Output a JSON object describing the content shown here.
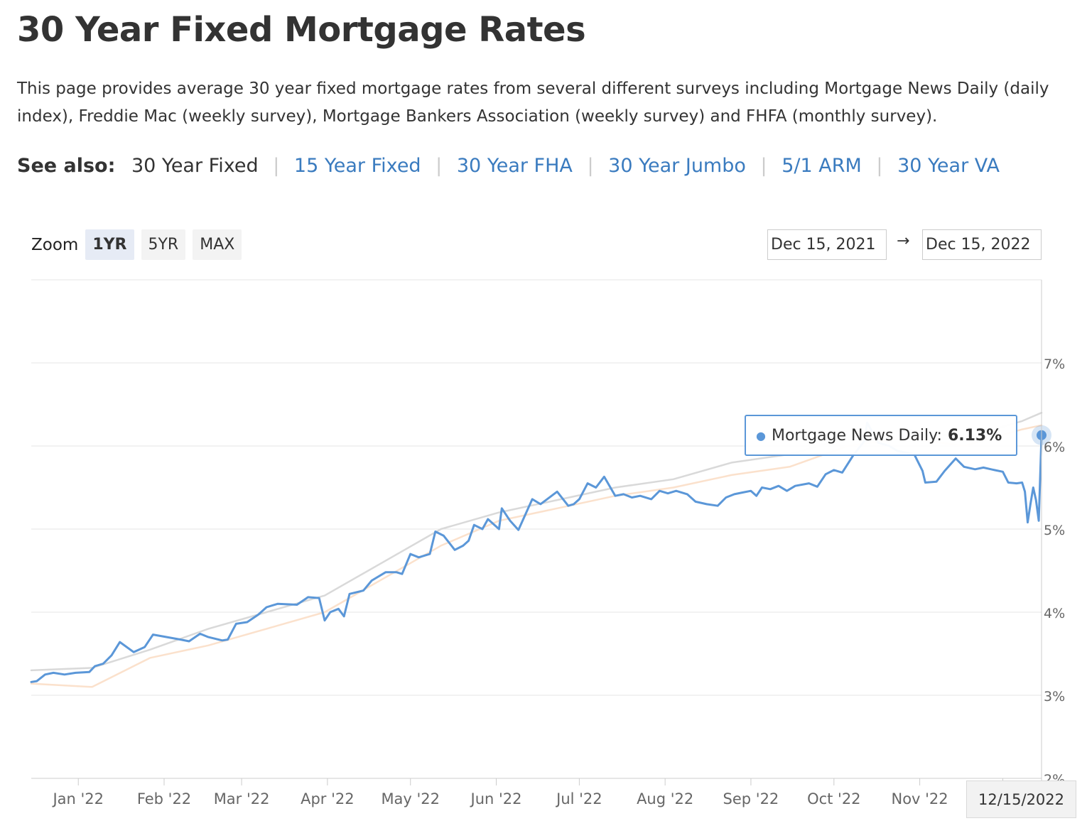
{
  "page": {
    "title": "30 Year Fixed Mortgage Rates",
    "intro": "This page provides average 30 year fixed mortgage rates from several different surveys including Mortgage News Daily (daily index), Freddie Mac (weekly survey), Mortgage Bankers Association (weekly survey) and FHFA (monthly survey)."
  },
  "see_also": {
    "label": "See also:",
    "current": "30 Year Fixed",
    "links": [
      "15 Year Fixed",
      "30 Year FHA",
      "30 Year Jumbo",
      "5/1 ARM",
      "30 Year VA"
    ],
    "separator": "|"
  },
  "zoom": {
    "label": "Zoom",
    "options": [
      "1YR",
      "5YR",
      "MAX"
    ],
    "active": "1YR"
  },
  "range": {
    "from": "Dec 15, 2021",
    "arrow": "→",
    "to": "Dec 15, 2022"
  },
  "tooltip": {
    "series": "Mortgage News Daily:",
    "value": "6.13%"
  },
  "hover_date": "12/15/2022",
  "colors": {
    "mnd": "#5b97d8",
    "other_survey_gray": "#d9d9d9",
    "other_survey_peach": "#fbe1cc",
    "link": "#3a7bbf"
  },
  "chart_data": {
    "type": "line",
    "x_range": [
      "2021-12-15",
      "2022-12-15"
    ],
    "ylim": [
      2,
      8
    ],
    "y_ticks": [
      "2%",
      "3%",
      "4%",
      "5%",
      "6%",
      "7%"
    ],
    "x_ticks": [
      {
        "date": "2022-01-01",
        "label": "Jan '22"
      },
      {
        "date": "2022-02-01",
        "label": "Feb '22"
      },
      {
        "date": "2022-03-01",
        "label": "Mar '22"
      },
      {
        "date": "2022-04-01",
        "label": "Apr '22"
      },
      {
        "date": "2022-05-01",
        "label": "May '22"
      },
      {
        "date": "2022-06-01",
        "label": "Jun '22"
      },
      {
        "date": "2022-07-01",
        "label": "Jul '22"
      },
      {
        "date": "2022-08-01",
        "label": "Aug '22"
      },
      {
        "date": "2022-09-01",
        "label": "Sep '22"
      },
      {
        "date": "2022-10-01",
        "label": "Oct '22"
      },
      {
        "date": "2022-11-01",
        "label": "Nov '22"
      },
      {
        "date": "2022-12-01",
        "label": "Dec '22"
      }
    ],
    "series": [
      {
        "name": "Mortgage News Daily",
        "color": "#5b97d8",
        "points": [
          [
            "2021-12-15",
            3.16
          ],
          [
            "2021-12-17",
            3.17
          ],
          [
            "2021-12-20",
            3.25
          ],
          [
            "2021-12-23",
            3.27
          ],
          [
            "2021-12-27",
            3.25
          ],
          [
            "2021-12-31",
            3.27
          ],
          [
            "2022-01-05",
            3.28
          ],
          [
            "2022-01-07",
            3.35
          ],
          [
            "2022-01-10",
            3.38
          ],
          [
            "2022-01-13",
            3.48
          ],
          [
            "2022-01-16",
            3.64
          ],
          [
            "2022-01-21",
            3.52
          ],
          [
            "2022-01-25",
            3.58
          ],
          [
            "2022-01-28",
            3.73
          ],
          [
            "2022-02-02",
            3.7
          ],
          [
            "2022-02-07",
            3.67
          ],
          [
            "2022-02-10",
            3.65
          ],
          [
            "2022-02-14",
            3.74
          ],
          [
            "2022-02-17",
            3.7
          ],
          [
            "2022-02-22",
            3.66
          ],
          [
            "2022-02-24",
            3.67
          ],
          [
            "2022-02-27",
            3.86
          ],
          [
            "2022-03-03",
            3.88
          ],
          [
            "2022-03-07",
            3.97
          ],
          [
            "2022-03-10",
            4.06
          ],
          [
            "2022-03-14",
            4.1
          ],
          [
            "2022-03-21",
            4.09
          ],
          [
            "2022-03-25",
            4.18
          ],
          [
            "2022-03-29",
            4.17
          ],
          [
            "2022-03-31",
            3.9
          ],
          [
            "2022-04-02",
            4.0
          ],
          [
            "2022-04-05",
            4.04
          ],
          [
            "2022-04-07",
            3.95
          ],
          [
            "2022-04-09",
            4.22
          ],
          [
            "2022-04-14",
            4.26
          ],
          [
            "2022-04-17",
            4.38
          ],
          [
            "2022-04-22",
            4.48
          ],
          [
            "2022-04-26",
            4.48
          ],
          [
            "2022-04-28",
            4.46
          ],
          [
            "2022-05-01",
            4.7
          ],
          [
            "2022-05-04",
            4.66
          ],
          [
            "2022-05-08",
            4.7
          ],
          [
            "2022-05-10",
            4.97
          ],
          [
            "2022-05-13",
            4.92
          ],
          [
            "2022-05-17",
            4.75
          ],
          [
            "2022-05-20",
            4.8
          ],
          [
            "2022-05-22",
            4.86
          ],
          [
            "2022-05-24",
            5.05
          ],
          [
            "2022-05-27",
            5.0
          ],
          [
            "2022-05-29",
            5.12
          ],
          [
            "2022-06-02",
            5.0
          ],
          [
            "2022-06-03",
            5.25
          ],
          [
            "2022-06-06",
            5.1
          ],
          [
            "2022-06-09",
            4.99
          ],
          [
            "2022-06-14",
            5.36
          ],
          [
            "2022-06-17",
            5.3
          ],
          [
            "2022-06-19",
            5.35
          ],
          [
            "2022-06-23",
            5.45
          ],
          [
            "2022-06-27",
            5.28
          ],
          [
            "2022-06-29",
            5.3
          ],
          [
            "2022-07-01",
            5.36
          ],
          [
            "2022-07-04",
            5.55
          ],
          [
            "2022-07-07",
            5.5
          ],
          [
            "2022-07-10",
            5.63
          ],
          [
            "2022-07-14",
            5.4
          ],
          [
            "2022-07-17",
            5.42
          ],
          [
            "2022-07-20",
            5.38
          ],
          [
            "2022-07-23",
            5.4
          ],
          [
            "2022-07-27",
            5.36
          ],
          [
            "2022-07-30",
            5.46
          ],
          [
            "2022-08-02",
            5.43
          ],
          [
            "2022-08-05",
            5.46
          ],
          [
            "2022-08-09",
            5.42
          ],
          [
            "2022-08-12",
            5.33
          ],
          [
            "2022-08-16",
            5.3
          ],
          [
            "2022-08-20",
            5.28
          ],
          [
            "2022-08-23",
            5.38
          ],
          [
            "2022-08-26",
            5.42
          ],
          [
            "2022-08-29",
            5.44
          ],
          [
            "2022-09-01",
            5.46
          ],
          [
            "2022-09-03",
            5.4
          ],
          [
            "2022-09-05",
            5.5
          ],
          [
            "2022-09-08",
            5.48
          ],
          [
            "2022-09-11",
            5.52
          ],
          [
            "2022-09-14",
            5.46
          ],
          [
            "2022-09-17",
            5.52
          ],
          [
            "2022-09-22",
            5.55
          ],
          [
            "2022-09-25",
            5.51
          ],
          [
            "2022-09-28",
            5.66
          ],
          [
            "2022-10-01",
            5.71
          ],
          [
            "2022-10-04",
            5.68
          ],
          [
            "2022-10-08",
            5.89
          ],
          [
            "2022-10-12",
            6.06
          ],
          [
            "2022-10-13",
            6.28
          ],
          [
            "2022-10-17",
            6.04
          ],
          [
            "2022-10-21",
            6.0
          ],
          [
            "2022-10-24",
            5.94
          ],
          [
            "2022-10-27",
            5.92
          ],
          [
            "2022-10-30",
            5.9
          ],
          [
            "2022-11-02",
            5.7
          ],
          [
            "2022-11-03",
            5.56
          ],
          [
            "2022-11-07",
            5.57
          ],
          [
            "2022-11-10",
            5.7
          ],
          [
            "2022-11-14",
            5.85
          ],
          [
            "2022-11-17",
            5.75
          ],
          [
            "2022-11-21",
            5.72
          ],
          [
            "2022-11-24",
            5.74
          ],
          [
            "2022-11-28",
            5.71
          ],
          [
            "2022-12-01",
            5.69
          ],
          [
            "2022-12-03",
            5.56
          ],
          [
            "2022-12-06",
            5.55
          ],
          [
            "2022-12-08",
            5.56
          ],
          [
            "2022-12-09",
            5.45
          ],
          [
            "2022-12-10",
            5.08
          ],
          [
            "2022-12-11",
            5.3
          ],
          [
            "2022-12-12",
            5.5
          ],
          [
            "2022-12-13",
            5.35
          ],
          [
            "2022-12-14",
            5.1
          ],
          [
            "2022-12-15",
            6.13
          ]
        ]
      },
      {
        "name": "Freddie Mac",
        "color": "#d9d9d9",
        "points": [
          [
            "2021-12-15",
            3.3
          ],
          [
            "2022-01-06",
            3.33
          ],
          [
            "2022-01-27",
            3.55
          ],
          [
            "2022-02-17",
            3.8
          ],
          [
            "2022-03-10",
            4.0
          ],
          [
            "2022-03-31",
            4.2
          ],
          [
            "2022-04-21",
            4.6
          ],
          [
            "2022-05-12",
            5.0
          ],
          [
            "2022-06-02",
            5.2
          ],
          [
            "2022-06-23",
            5.35
          ],
          [
            "2022-07-14",
            5.5
          ],
          [
            "2022-08-04",
            5.6
          ],
          [
            "2022-08-25",
            5.8
          ],
          [
            "2022-09-15",
            5.9
          ],
          [
            "2022-10-06",
            6.1
          ],
          [
            "2022-10-27",
            6.2
          ],
          [
            "2022-11-17",
            6.1
          ],
          [
            "2022-12-08",
            6.3
          ],
          [
            "2022-12-15",
            6.4
          ]
        ]
      },
      {
        "name": "Mortgage Bankers Association",
        "color": "#fbe1cc",
        "points": [
          [
            "2021-12-15",
            3.14
          ],
          [
            "2022-01-06",
            3.1
          ],
          [
            "2022-01-27",
            3.45
          ],
          [
            "2022-02-17",
            3.6
          ],
          [
            "2022-03-10",
            3.8
          ],
          [
            "2022-03-31",
            4.0
          ],
          [
            "2022-04-21",
            4.4
          ],
          [
            "2022-05-12",
            4.8
          ],
          [
            "2022-06-02",
            5.1
          ],
          [
            "2022-06-23",
            5.25
          ],
          [
            "2022-07-14",
            5.4
          ],
          [
            "2022-08-04",
            5.5
          ],
          [
            "2022-08-25",
            5.65
          ],
          [
            "2022-09-15",
            5.75
          ],
          [
            "2022-10-06",
            6.0
          ],
          [
            "2022-10-27",
            6.1
          ],
          [
            "2022-11-17",
            6.0
          ],
          [
            "2022-12-08",
            6.2
          ],
          [
            "2022-12-15",
            6.25
          ]
        ]
      }
    ]
  }
}
